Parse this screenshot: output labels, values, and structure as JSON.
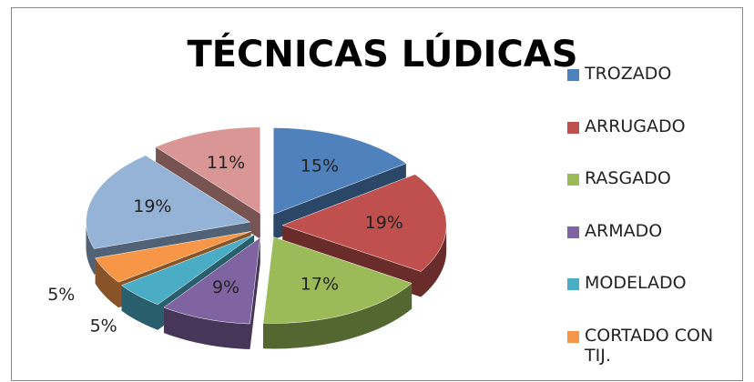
{
  "chart_data": {
    "type": "pie",
    "title": "TÉCNICAS LÚDICAS",
    "categories": [
      "TROZADO",
      "ARRUGADO",
      "RASGADO",
      "ARMADO",
      "MODELADO",
      "CORTADO CON TIJ.",
      null,
      null
    ],
    "values": [
      15,
      19,
      17,
      9,
      5,
      5,
      19,
      11
    ],
    "value_labels": [
      "15%",
      "19%",
      "17%",
      "9%",
      "5%",
      "5%",
      "19%",
      "11%"
    ],
    "colors": [
      "#4f81bd",
      "#c0504d",
      "#9bbb59",
      "#8064a2",
      "#4bacc6",
      "#f79646",
      "#95b3d7",
      "#d99694"
    ],
    "legend": "right",
    "style": "3d-exploded"
  }
}
